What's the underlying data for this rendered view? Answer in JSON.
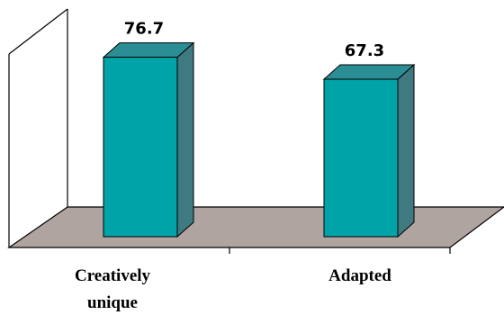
{
  "chart_data": {
    "type": "bar",
    "style": "3d-column",
    "categories": [
      "Creatively unique",
      "Adapted"
    ],
    "category_lines": [
      [
        "Creatively",
        "unique"
      ],
      [
        "Adapted"
      ]
    ],
    "values": [
      76.7,
      67.3
    ],
    "value_labels": [
      "76.7",
      "67.3"
    ],
    "title": "",
    "xlabel": "",
    "ylabel": "",
    "ylim": [
      0,
      100
    ],
    "grid": false,
    "legend": "none",
    "colors": {
      "bar_front": "#00A3A8",
      "bar_top": "#2A8E94",
      "bar_side": "#3F7A80",
      "floor": "#AFA4A0",
      "frame": "#000000"
    }
  }
}
